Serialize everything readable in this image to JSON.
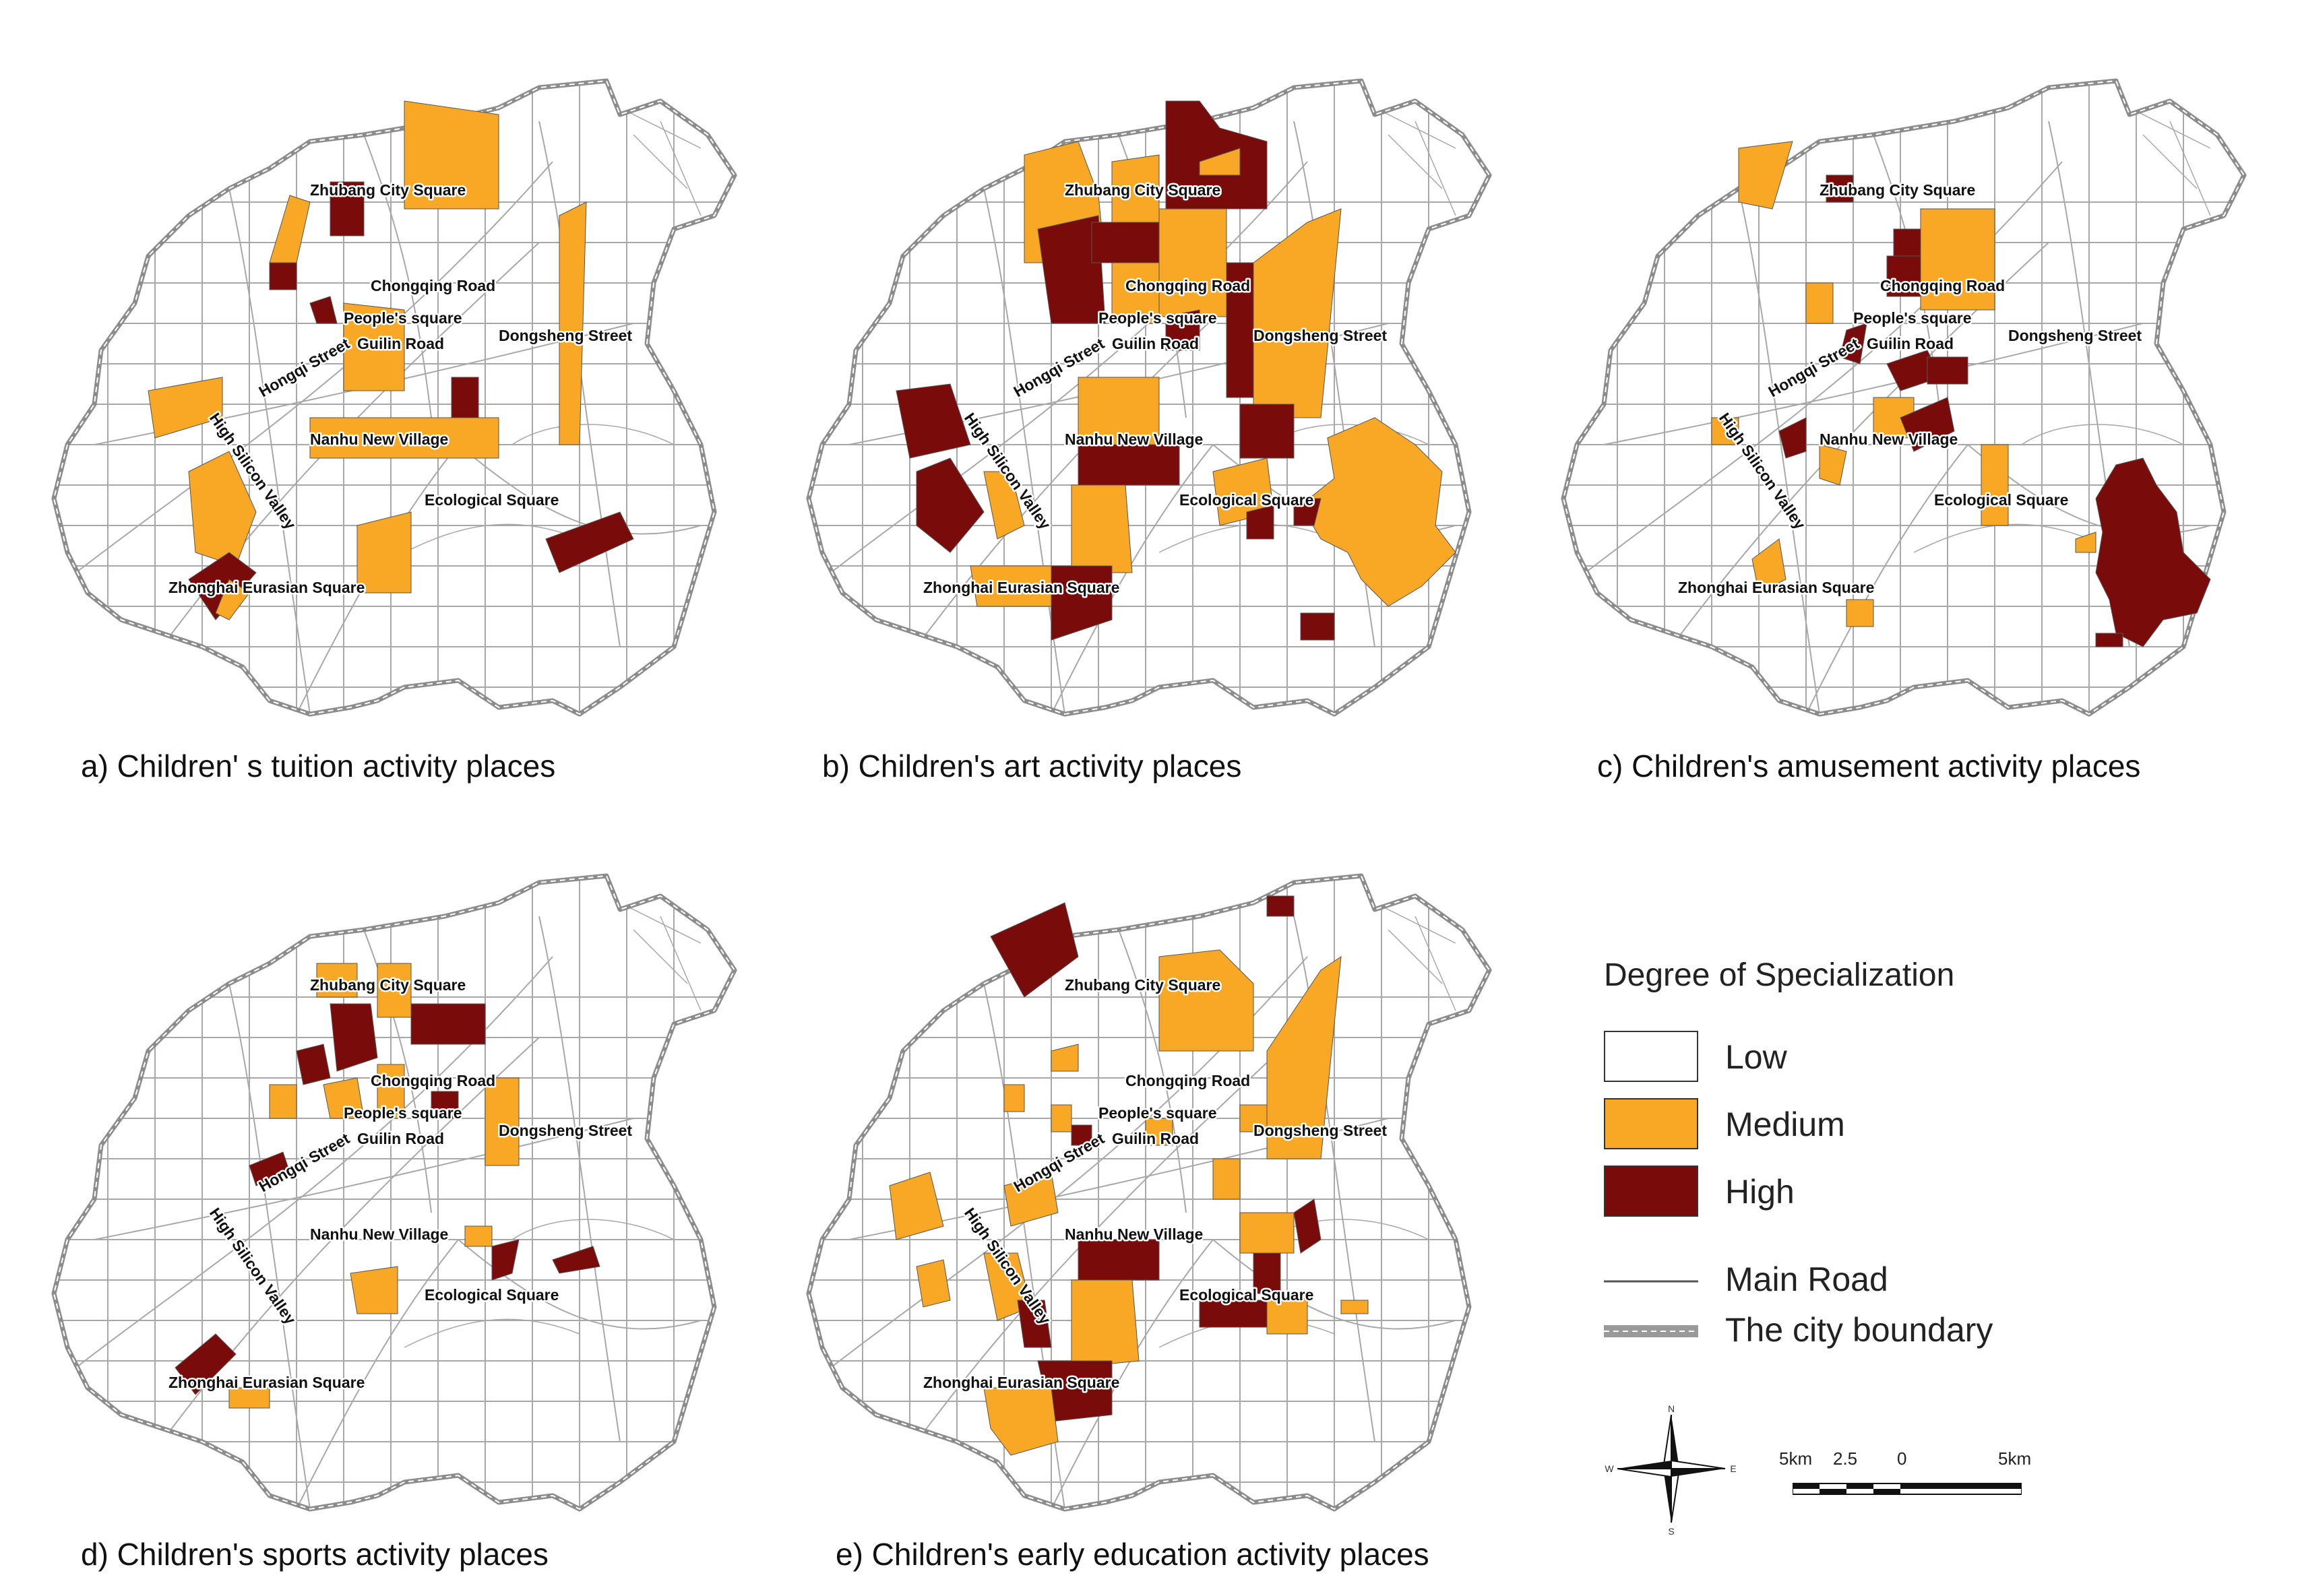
{
  "places": {
    "zhubang": "Zhubang City Square",
    "chongqing": "Chongqing Road",
    "peoples": "People's square",
    "guilin": "Guilin Road",
    "dongsheng": "Dongsheng Street",
    "hongqi": "Hongqi Street",
    "nanhu": "Nanhu New Village",
    "silicon": "High Silicon Valley",
    "ecological": "Ecological Square",
    "zhonghai": "Zhonghai Eurasian Square"
  },
  "panels": [
    {
      "caption": "a) Children' s tuition activity places"
    },
    {
      "caption": "b) Children's art activity places"
    },
    {
      "caption": "c) Children's amusement activity places"
    },
    {
      "caption": "d) Children's sports activity places"
    },
    {
      "caption": "e) Children's early education activity places"
    }
  ],
  "legend": {
    "title": "Degree of Specialization",
    "classes": [
      {
        "label": "Low",
        "color": "#ffffff"
      },
      {
        "label": "Medium",
        "color": "#f9a825"
      },
      {
        "label": "High",
        "color": "#7a0b0b"
      }
    ],
    "main_road": "Main Road",
    "boundary": "The city boundary"
  },
  "scale": {
    "labels": [
      "5km",
      "2.5",
      "0",
      "5km"
    ]
  },
  "compass": {
    "n": "N",
    "s": "S",
    "e": "E",
    "w": "W"
  },
  "colors": {
    "medium": "#f9a825",
    "high": "#7a0b0b",
    "road": "#9a9a9a",
    "boundary": "#8c8c8c"
  }
}
